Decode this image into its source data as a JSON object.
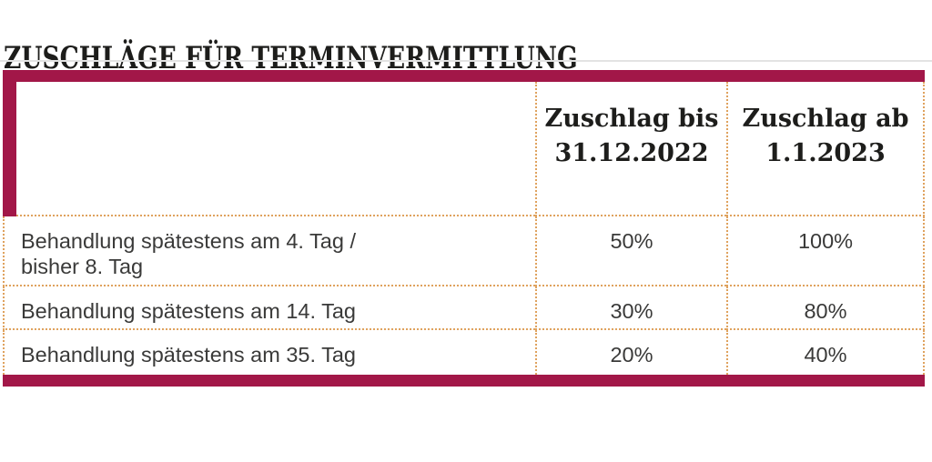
{
  "page": {
    "title": "ZUSCHLÄGE FÜR TERMINVERMITTLUNG"
  },
  "colors": {
    "accent": "#a21748",
    "dots": "#dfa25e",
    "title": "#1d1d1b",
    "body": "#3a3a39",
    "hairline": "#e3e3e3"
  },
  "table": {
    "column_headers": [
      {
        "line1": "Zuschlag bis",
        "line2": "31.12.2022"
      },
      {
        "line1": "Zuschlag ab",
        "line2": "1.1.2023"
      }
    ],
    "rows": [
      {
        "label_line1": "Behandlung spätestens am 4. Tag /",
        "label_line2": "bisher 8. Tag",
        "values": [
          "50%",
          "100%"
        ]
      },
      {
        "label_line1": "Behandlung spätestens am 14. Tag",
        "label_line2": "",
        "values": [
          "30%",
          "80%"
        ]
      },
      {
        "label_line1": "Behandlung spätestens am 35. Tag",
        "label_line2": "",
        "values": [
          "20%",
          "40%"
        ]
      }
    ]
  }
}
